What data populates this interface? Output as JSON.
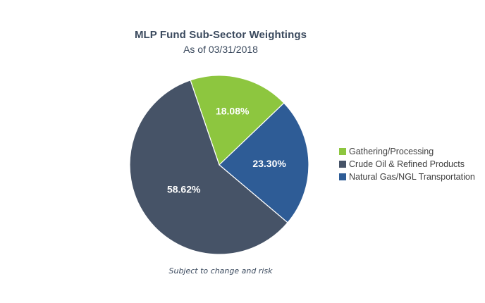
{
  "chart_data": {
    "type": "pie",
    "title": "MLP Fund Sub-Sector Weightings",
    "subtitle": "As of 03/31/2018",
    "footnote": "Subject to change and risk",
    "legend_position": "right",
    "slices": [
      {
        "name": "Gathering/Processing",
        "value": 18.08,
        "label": "18.08%",
        "color": "#8dc63f"
      },
      {
        "name": "Natural Gas/NGL Transportation",
        "value": 23.3,
        "label": "23.30%",
        "color": "#2e5c96"
      },
      {
        "name": "Crude Oil & Refined Products",
        "value": 58.62,
        "label": "58.62%",
        "color": "#465367"
      }
    ],
    "legend": [
      {
        "name": "Gathering/Processing",
        "color": "#8dc63f"
      },
      {
        "name": "Crude Oil & Refined Products",
        "color": "#465367"
      },
      {
        "name": "Natural Gas/NGL Transportation",
        "color": "#2e5c96"
      }
    ]
  }
}
